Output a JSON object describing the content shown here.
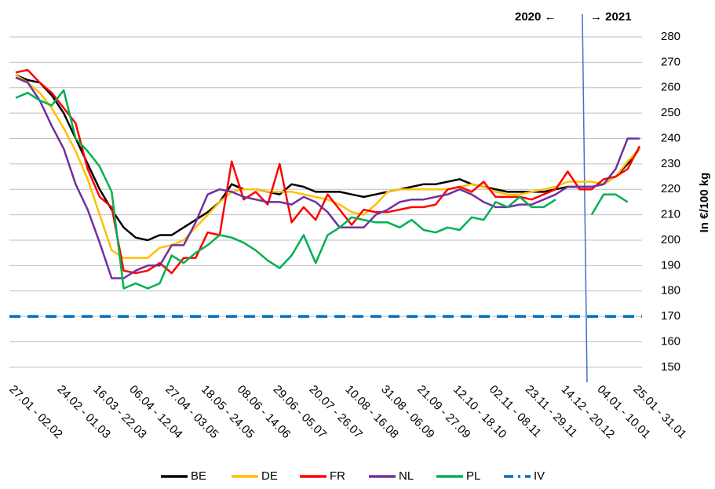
{
  "chart_data": {
    "type": "line",
    "y_label": "In €/100 kg",
    "annotations": [
      "2020 ←",
      "→ 2021"
    ],
    "categories": [
      "27.01 - 02.02",
      null,
      null,
      null,
      "24.02 - 01.03",
      null,
      null,
      "16.03 - 22.03",
      null,
      null,
      "06.04 - 12.04",
      null,
      null,
      "27.04 - 03.05",
      null,
      null,
      "18.05 - 24.05",
      null,
      null,
      "08.06 - 14.06",
      null,
      null,
      "29.06 - 05.07",
      null,
      null,
      "20.07 - 26.07",
      null,
      null,
      "10.08 - 16.08",
      null,
      null,
      "31.08 - 06.09",
      null,
      null,
      "21.09 - 27.09",
      null,
      null,
      "12.10 - 18.10",
      null,
      null,
      "02.11 - 08.11",
      null,
      null,
      "23.11 - 29.11",
      null,
      null,
      "14.12 - 20.12",
      null,
      null,
      "04.01 - 10.01",
      null,
      null,
      "25.01 - 31.01"
    ],
    "series": [
      {
        "name": "BE",
        "color": "#000000",
        "values": [
          265,
          263,
          262,
          257,
          250,
          240,
          230,
          220,
          212,
          205,
          201,
          200,
          202,
          202,
          205,
          208,
          211,
          215,
          222,
          220,
          220,
          219,
          218,
          222,
          221,
          219,
          219,
          219,
          218,
          217,
          218,
          219,
          220,
          221,
          222,
          222,
          223,
          224,
          222,
          221,
          220,
          219,
          219,
          219,
          219,
          220,
          221,
          221,
          221,
          222,
          225,
          230,
          236
        ]
      },
      {
        "name": "DE",
        "color": "#ffc000",
        "values": [
          265,
          262,
          258,
          252,
          244,
          235,
          224,
          210,
          196,
          193,
          193,
          193,
          197,
          198,
          200,
          205,
          210,
          215,
          219,
          220,
          220,
          219,
          219,
          219,
          218,
          217,
          216,
          214,
          211,
          210,
          214,
          219,
          220,
          220,
          220,
          220,
          220,
          221,
          222,
          221,
          219,
          218,
          218,
          219,
          220,
          221,
          223,
          223,
          223,
          222,
          225,
          231,
          236
        ]
      },
      {
        "name": "FR",
        "color": "#ff0000",
        "values": [
          266,
          267,
          262,
          258,
          252,
          246,
          228,
          217,
          213,
          188,
          187,
          188,
          191,
          187,
          193,
          193,
          203,
          202,
          231,
          216,
          219,
          214,
          230,
          207,
          213,
          208,
          218,
          212,
          206,
          212,
          211,
          211,
          212,
          213,
          213,
          214,
          220,
          221,
          219,
          223,
          217,
          217,
          217,
          216,
          218,
          220,
          227,
          220,
          220,
          224,
          225,
          228,
          237
        ]
      },
      {
        "name": "NL",
        "color": "#7030a0",
        "values": [
          264,
          262,
          255,
          245,
          236,
          222,
          212,
          199,
          185,
          185,
          188,
          190,
          190,
          198,
          198,
          207,
          218,
          220,
          219,
          217,
          216,
          215,
          215,
          214,
          217,
          215,
          211,
          205,
          205,
          205,
          210,
          212,
          215,
          216,
          216,
          217,
          218,
          220,
          218,
          215,
          213,
          213,
          214,
          214,
          216,
          218,
          221,
          221,
          221,
          222,
          228,
          240,
          240
        ]
      },
      {
        "name": "PL",
        "color": "#00b050",
        "values": [
          256,
          258,
          255,
          253,
          259,
          240,
          235,
          229,
          219,
          181,
          183,
          181,
          183,
          194,
          191,
          195,
          198,
          202,
          201,
          199,
          196,
          192,
          189,
          194,
          202,
          191,
          202,
          205,
          209,
          208,
          207,
          207,
          205,
          208,
          204,
          203,
          205,
          204,
          209,
          208,
          215,
          213,
          217,
          213,
          213,
          216,
          null,
          null,
          210,
          218,
          218,
          215,
          null
        ]
      },
      {
        "name": "IV",
        "color": "#0070c0",
        "dashed": true,
        "values": [
          170,
          170,
          170,
          170,
          170,
          170,
          170,
          170,
          170,
          170,
          170,
          170,
          170,
          170,
          170,
          170,
          170,
          170,
          170,
          170,
          170,
          170,
          170,
          170,
          170,
          170,
          170,
          170,
          170,
          170,
          170,
          170,
          170,
          170,
          170,
          170,
          170,
          170,
          170,
          170,
          170,
          170,
          170,
          170,
          170,
          170,
          170,
          170,
          170,
          170,
          170,
          170,
          170
        ]
      }
    ],
    "ylim": [
      145,
      290
    ],
    "yticks": [
      150,
      160,
      170,
      180,
      190,
      200,
      210,
      220,
      230,
      240,
      250,
      260,
      270,
      280
    ],
    "grid": true
  }
}
